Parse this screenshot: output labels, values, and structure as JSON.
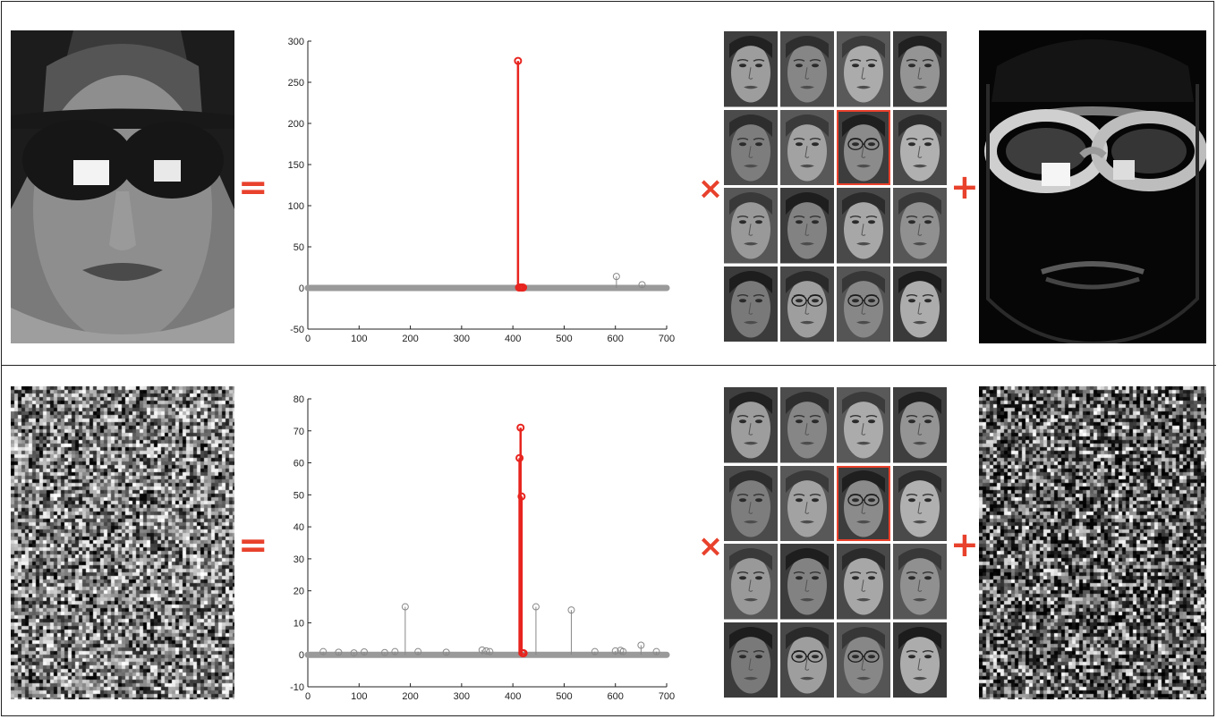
{
  "operators": {
    "equals": "=",
    "times": "×",
    "plus": "+"
  },
  "colors": {
    "accent": "#e8412c",
    "stem_main": "#e8241f",
    "stem_minor": "#888888",
    "baseline": "#9a9a9a"
  },
  "rows": [
    {
      "test_image": "face-with-sunglasses",
      "dictionary": "face-training-images-4x4-grid",
      "highlighted_cell": [
        1,
        2
      ],
      "error_image": "sunglasses-error",
      "chart_data": {
        "type": "stem",
        "xlim": [
          0,
          700
        ],
        "ylim": [
          -50,
          300
        ],
        "xticks": [
          0,
          100,
          200,
          300,
          400,
          500,
          600,
          700
        ],
        "yticks": [
          -50,
          0,
          50,
          100,
          150,
          200,
          250,
          300
        ],
        "main_series": {
          "x": [
            410,
            412,
            414,
            416,
            418,
            420
          ],
          "y": [
            276,
            0.5,
            0.5,
            0.5,
            0.5,
            0.5
          ]
        },
        "minor_series": {
          "x": [
            602,
            652
          ],
          "y": [
            14,
            4
          ]
        }
      }
    },
    {
      "test_image": "noise-corrupted-face",
      "dictionary": "face-training-images-4x4-grid",
      "highlighted_cell": [
        1,
        2
      ],
      "error_image": "random-noise-error",
      "chart_data": {
        "type": "stem",
        "xlim": [
          0,
          700
        ],
        "ylim": [
          -10,
          80
        ],
        "xticks": [
          0,
          100,
          200,
          300,
          400,
          500,
          600,
          700
        ],
        "yticks": [
          -10,
          0,
          10,
          20,
          30,
          40,
          50,
          60,
          70,
          80
        ],
        "main_series": {
          "x": [
            413,
            415,
            417,
            419,
            421
          ],
          "y": [
            61.5,
            71,
            49.5,
            0.5,
            0.5
          ]
        },
        "minor_series": {
          "x": [
            30,
            60,
            90,
            110,
            150,
            170,
            190,
            215,
            270,
            340,
            348,
            355,
            445,
            514,
            560,
            600,
            610,
            615,
            650,
            680
          ],
          "y": [
            1,
            0.8,
            0.6,
            0.9,
            0.7,
            1,
            15,
            1,
            0.8,
            1.5,
            1.2,
            1,
            15,
            14,
            1,
            1.2,
            1.4,
            1,
            3,
            1
          ]
        }
      }
    }
  ]
}
